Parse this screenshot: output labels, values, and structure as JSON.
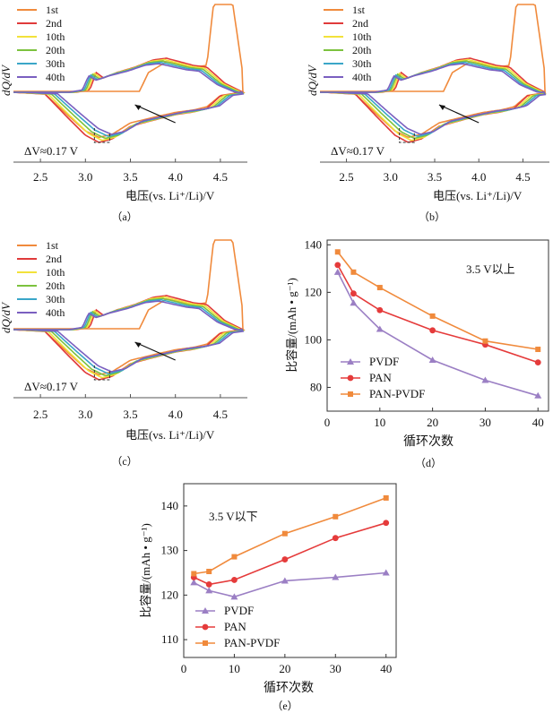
{
  "chart_data": [
    {
      "id": "a",
      "type": "line",
      "caption": "（a）",
      "xlabel": "电压(vs. Li⁺/Li)/V",
      "ylabel": "dQ/dV",
      "xlim": [
        2.2,
        4.8
      ],
      "xticks": [
        2.5,
        3.0,
        3.5,
        4.0,
        4.5
      ],
      "annotation": "ΔV≈0.17 V",
      "legend_position": "top-left",
      "series": [
        {
          "name": "1st",
          "color": "#f08a3c"
        },
        {
          "name": "2nd",
          "color": "#e03a3a"
        },
        {
          "name": "10th",
          "color": "#f2e23a"
        },
        {
          "name": "20th",
          "color": "#7cc23e"
        },
        {
          "name": "30th",
          "color": "#3aa6c8"
        },
        {
          "name": "40th",
          "color": "#7a5fc0"
        }
      ]
    },
    {
      "id": "b",
      "type": "line",
      "caption": "（b）",
      "xlabel": "电压(vs. Li⁺/Li)/V",
      "ylabel": "dQ/dV",
      "xlim": [
        2.2,
        4.8
      ],
      "xticks": [
        2.5,
        3.0,
        3.5,
        4.0,
        4.5
      ],
      "annotation": "ΔV≈0.17 V",
      "legend_position": "top-left",
      "series": [
        {
          "name": "1st",
          "color": "#f08a3c"
        },
        {
          "name": "2nd",
          "color": "#e03a3a"
        },
        {
          "name": "10th",
          "color": "#f2e23a"
        },
        {
          "name": "20th",
          "color": "#7cc23e"
        },
        {
          "name": "30th",
          "color": "#3aa6c8"
        },
        {
          "name": "40th",
          "color": "#7a5fc0"
        }
      ]
    },
    {
      "id": "c",
      "type": "line",
      "caption": "（c）",
      "xlabel": "电压(vs. Li⁺/Li)/V",
      "ylabel": "dQ/dV",
      "xlim": [
        2.2,
        4.8
      ],
      "xticks": [
        2.5,
        3.0,
        3.5,
        4.0,
        4.5
      ],
      "annotation": "ΔV≈0.17 V",
      "legend_position": "top-left",
      "series": [
        {
          "name": "1st",
          "color": "#f08a3c"
        },
        {
          "name": "2nd",
          "color": "#e03a3a"
        },
        {
          "name": "10th",
          "color": "#f2e23a"
        },
        {
          "name": "20th",
          "color": "#7cc23e"
        },
        {
          "name": "30th",
          "color": "#3aa6c8"
        },
        {
          "name": "40th",
          "color": "#7a5fc0"
        }
      ]
    },
    {
      "id": "d",
      "type": "line",
      "caption": "（d）",
      "annotation": "3.5 V以上",
      "xlabel": "循环次数",
      "ylabel": "比容量/(mAh • g⁻¹)",
      "xlim": [
        0,
        42
      ],
      "ylim": [
        70,
        142
      ],
      "xticks": [
        0,
        10,
        20,
        30,
        40
      ],
      "yticks": [
        80,
        100,
        120,
        140
      ],
      "legend_position": "bottom-left",
      "x": [
        2,
        5,
        10,
        20,
        30,
        40
      ],
      "series": [
        {
          "name": "PVDF",
          "color": "#9b7fc4",
          "marker": "triangle",
          "values": [
            128.5,
            115.5,
            104.5,
            91.5,
            83,
            76.5
          ]
        },
        {
          "name": "PAN",
          "color": "#e53b3b",
          "marker": "circle",
          "values": [
            131.5,
            119.5,
            112.5,
            104,
            98,
            90.5
          ]
        },
        {
          "name": "PAN-PVDF",
          "color": "#f08a3c",
          "marker": "square",
          "values": [
            137,
            128.5,
            122,
            110,
            99.5,
            96
          ]
        }
      ]
    },
    {
      "id": "e",
      "type": "line",
      "caption": "（e）",
      "annotation": "3.5 V以下",
      "xlabel": "循环次数",
      "ylabel": "比容量/(mAh • g⁻¹)",
      "xlim": [
        0,
        42
      ],
      "ylim": [
        106,
        145
      ],
      "xticks": [
        0,
        10,
        20,
        30,
        40
      ],
      "yticks": [
        110,
        120,
        130,
        140
      ],
      "legend_position": "bottom-left",
      "x": [
        2,
        5,
        10,
        20,
        30,
        40
      ],
      "series": [
        {
          "name": "PVDF",
          "color": "#9b7fc4",
          "marker": "triangle",
          "values": [
            122.8,
            121,
            119.6,
            123.2,
            124,
            125
          ]
        },
        {
          "name": "PAN",
          "color": "#e53b3b",
          "marker": "circle",
          "values": [
            124,
            122.4,
            123.4,
            128,
            132.8,
            136.2
          ]
        },
        {
          "name": "PAN-PVDF",
          "color": "#f08a3c",
          "marker": "square",
          "values": [
            124.8,
            125.3,
            128.6,
            133.8,
            137.6,
            141.8
          ]
        }
      ]
    }
  ]
}
